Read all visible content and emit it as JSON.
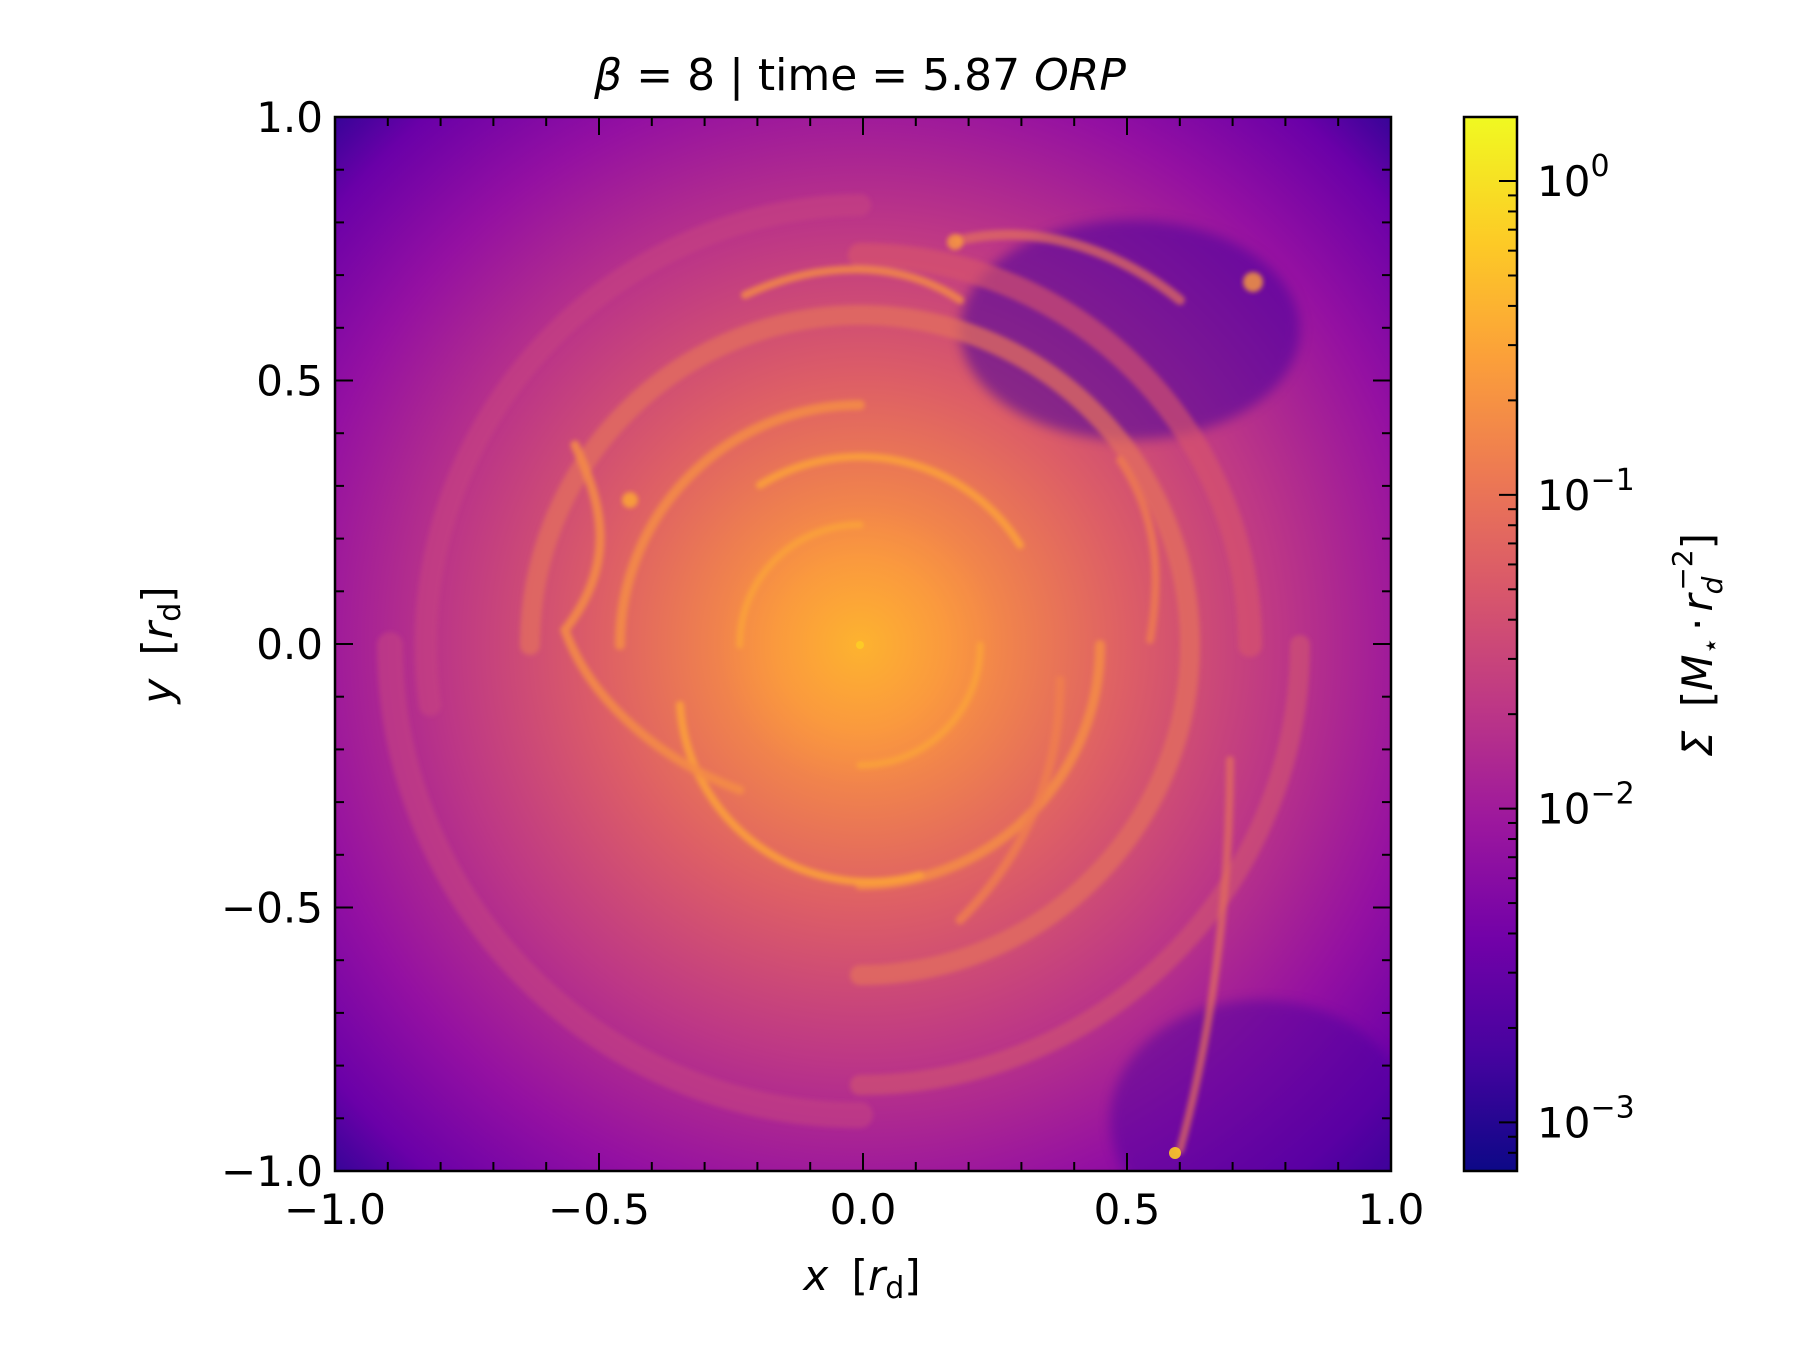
{
  "chart_data": {
    "type": "heatmap",
    "title": {
      "beta_symbol": "β",
      "beta_value": "= 8",
      "separator": "|",
      "time_label": "time = 5.87",
      "time_unit": "ORP"
    },
    "xlabel": {
      "var": "x",
      "unit_open": "[",
      "unit_r": "r",
      "unit_sub": "d",
      "unit_close": "]"
    },
    "ylabel": {
      "var": "y",
      "unit_open": "[",
      "unit_r": "r",
      "unit_sub": "d",
      "unit_close": "]"
    },
    "xlim": [
      -1.0,
      1.0
    ],
    "ylim": [
      -1.0,
      1.0
    ],
    "xticks": [
      {
        "value": -1.0,
        "label": "−1.0"
      },
      {
        "value": -0.5,
        "label": "−0.5"
      },
      {
        "value": 0.0,
        "label": "0.0"
      },
      {
        "value": 0.5,
        "label": "0.5"
      },
      {
        "value": 1.0,
        "label": "1.0"
      }
    ],
    "yticks": [
      {
        "value": -1.0,
        "label": "−1.0"
      },
      {
        "value": -0.5,
        "label": "−0.5"
      },
      {
        "value": 0.0,
        "label": "0.0"
      },
      {
        "value": 0.5,
        "label": "0.5"
      },
      {
        "value": 1.0,
        "label": "1.0"
      }
    ],
    "minor_tick_step": 0.1,
    "colorbar": {
      "scale": "log",
      "colormap": "plasma",
      "range": [
        0.0007,
        1.6
      ],
      "ticks": [
        {
          "value": 0.001,
          "base": "10",
          "exp": "−3"
        },
        {
          "value": 0.01,
          "base": "10",
          "exp": "−2"
        },
        {
          "value": 0.1,
          "base": "10",
          "exp": "−1"
        },
        {
          "value": 1.0,
          "base": "10",
          "exp": "0"
        }
      ],
      "label": {
        "symbol": "Σ",
        "open": "[",
        "mass": "M",
        "mass_sub": "⋆",
        "dot": "·",
        "r": "r",
        "r_sub": "d",
        "r_exp": "−2",
        "close": "]"
      }
    },
    "colors": {
      "plasma": [
        "#0d0887",
        "#46039f",
        "#7201a8",
        "#9c179e",
        "#bd3786",
        "#d8576b",
        "#ed7953",
        "#fb9f3a",
        "#fdca26",
        "#f0f921"
      ]
    }
  }
}
